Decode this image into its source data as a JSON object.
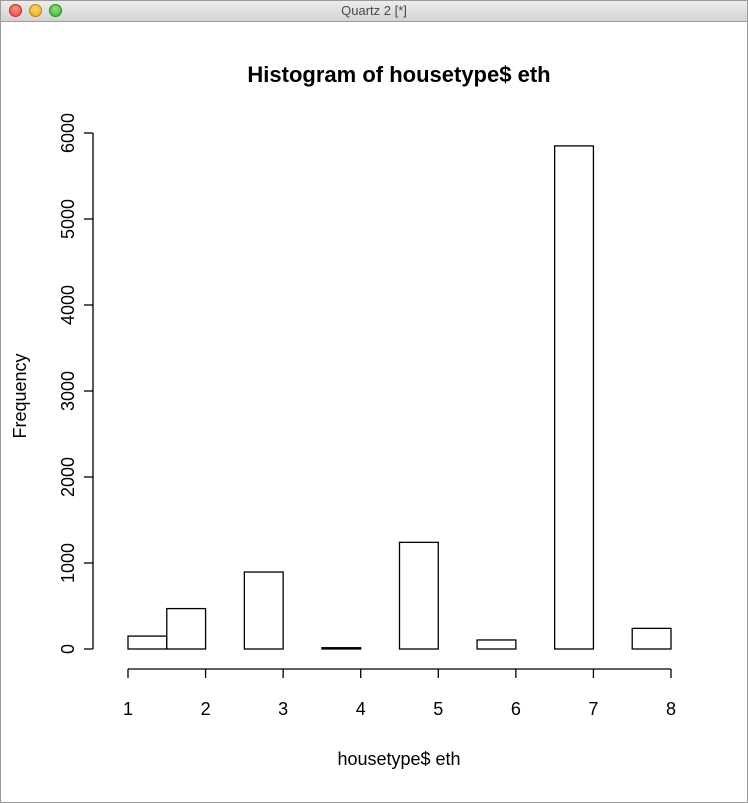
{
  "window": {
    "title": "Quartz 2 [*]"
  },
  "chart_data": {
    "type": "bar",
    "title": "Histogram of housetype$ eth",
    "xlabel": "housetype$ eth",
    "ylabel": "Frequency",
    "xticks": [
      "1",
      "2",
      "3",
      "4",
      "5",
      "6",
      "7",
      "8"
    ],
    "yticks": [
      "0",
      "1000",
      "2000",
      "3000",
      "4000",
      "5000",
      "6000"
    ],
    "xlim": [
      1,
      8
    ],
    "ylim": [
      0,
      6000
    ],
    "bins": [
      {
        "x0": 1.0,
        "x1": 1.5,
        "count": 150
      },
      {
        "x0": 1.5,
        "x1": 2.0,
        "count": 470
      },
      {
        "x0": 2.0,
        "x1": 2.5,
        "count": 0
      },
      {
        "x0": 2.5,
        "x1": 3.0,
        "count": 895
      },
      {
        "x0": 3.0,
        "x1": 3.5,
        "count": 0
      },
      {
        "x0": 3.5,
        "x1": 4.0,
        "count": 15
      },
      {
        "x0": 4.0,
        "x1": 4.5,
        "count": 0
      },
      {
        "x0": 4.5,
        "x1": 5.0,
        "count": 1240
      },
      {
        "x0": 5.0,
        "x1": 5.5,
        "count": 0
      },
      {
        "x0": 5.5,
        "x1": 6.0,
        "count": 105
      },
      {
        "x0": 6.0,
        "x1": 6.5,
        "count": 0
      },
      {
        "x0": 6.5,
        "x1": 7.0,
        "count": 5850
      },
      {
        "x0": 7.0,
        "x1": 7.5,
        "count": 0
      },
      {
        "x0": 7.5,
        "x1": 8.0,
        "count": 240
      }
    ],
    "grid": false,
    "colors": {
      "bar_fill": "#ffffff",
      "bar_stroke": "#000000"
    }
  }
}
